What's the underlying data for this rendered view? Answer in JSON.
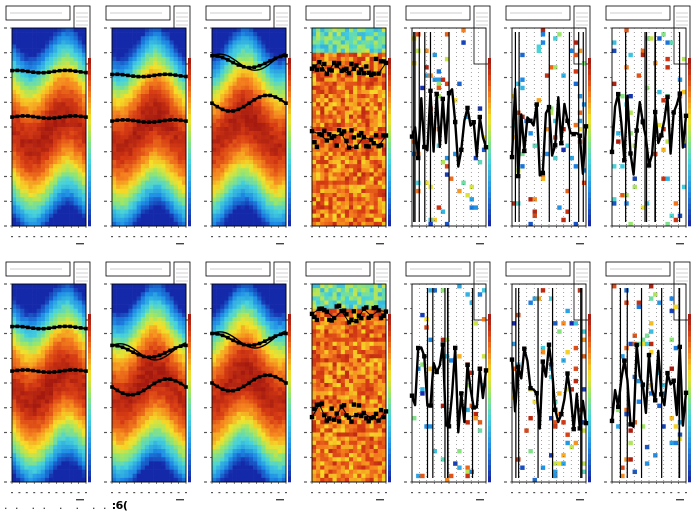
{
  "app": {
    "footer_label": ":6("
  },
  "colors": {
    "background": "#ffffff",
    "frame": "#000000",
    "marker": "#000000"
  },
  "chart_data": [
    {
      "type": "heatmap",
      "row": 0,
      "col": 0,
      "style": "smooth",
      "bands": [
        0.55,
        0.78
      ],
      "trace_style": "flat"
    },
    {
      "type": "heatmap",
      "row": 0,
      "col": 1,
      "style": "smooth",
      "bands": [
        0.53,
        0.76
      ],
      "trace_style": "flat"
    },
    {
      "type": "heatmap",
      "row": 0,
      "col": 2,
      "style": "smooth",
      "bands": [
        0.62,
        0.83
      ],
      "trace_style": "wave"
    },
    {
      "type": "heatmap",
      "row": 0,
      "col": 3,
      "style": "noisy",
      "bands": [
        0.44,
        0.8
      ],
      "trace_style": "scatter"
    },
    {
      "type": "heatmap",
      "row": 0,
      "col": 4,
      "style": "sparse",
      "trace_style": "erratic"
    },
    {
      "type": "heatmap",
      "row": 0,
      "col": 5,
      "style": "sparse",
      "trace_style": "erratic"
    },
    {
      "type": "heatmap",
      "row": 0,
      "col": 6,
      "style": "sparse",
      "trace_style": "erratic"
    },
    {
      "type": "heatmap",
      "row": 1,
      "col": 0,
      "style": "smooth",
      "bands": [
        0.56,
        0.78
      ],
      "trace_style": "flat"
    },
    {
      "type": "heatmap",
      "row": 1,
      "col": 1,
      "style": "smooth",
      "bands": [
        0.48,
        0.66
      ],
      "trace_style": "wave"
    },
    {
      "type": "heatmap",
      "row": 1,
      "col": 2,
      "style": "smooth",
      "bands": [
        0.5,
        0.72
      ],
      "trace_style": "wave"
    },
    {
      "type": "heatmap",
      "row": 1,
      "col": 3,
      "style": "noisy",
      "bands": [
        0.35,
        0.85
      ],
      "trace_style": "scatter"
    },
    {
      "type": "heatmap",
      "row": 1,
      "col": 4,
      "style": "sparse",
      "trace_style": "erratic"
    },
    {
      "type": "heatmap",
      "row": 1,
      "col": 5,
      "style": "sparse",
      "trace_style": "erratic"
    },
    {
      "type": "heatmap",
      "row": 1,
      "col": 6,
      "style": "sparse",
      "trace_style": "erratic"
    }
  ]
}
